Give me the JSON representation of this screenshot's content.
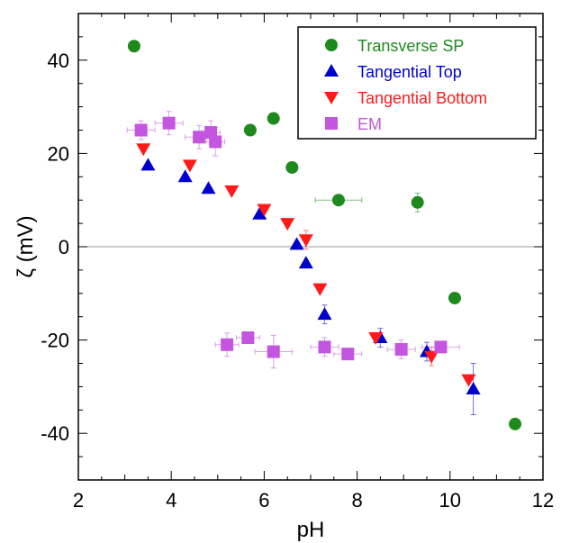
{
  "chart_data": {
    "type": "scatter",
    "title": "",
    "xlabel": "pH",
    "ylabel": "ζ (mV)",
    "xlim": [
      2,
      12
    ],
    "ylim": [
      -50,
      50
    ],
    "xticks": [
      2,
      4,
      6,
      8,
      10,
      12
    ],
    "yticks": [
      -40,
      -20,
      0,
      20,
      40
    ],
    "grid": false,
    "zero_line": true,
    "legend_position": "top-right",
    "series": [
      {
        "name": "Transverse SP",
        "marker": "circle",
        "color": "#1e8a1e",
        "points": [
          {
            "x": 3.2,
            "y": 43
          },
          {
            "x": 5.7,
            "y": 25
          },
          {
            "x": 6.2,
            "y": 27.5
          },
          {
            "x": 6.6,
            "y": 17
          },
          {
            "x": 7.6,
            "y": 10,
            "xerr": 0.5
          },
          {
            "x": 9.3,
            "y": 9.5,
            "yerr": 2
          },
          {
            "x": 10.1,
            "y": -11
          },
          {
            "x": 11.4,
            "y": -38
          }
        ]
      },
      {
        "name": "Tangential Top",
        "marker": "triangle-up",
        "color": "#0000cc",
        "points": [
          {
            "x": 3.5,
            "y": 17.5
          },
          {
            "x": 4.3,
            "y": 15
          },
          {
            "x": 4.8,
            "y": 12.5
          },
          {
            "x": 5.9,
            "y": 7
          },
          {
            "x": 6.7,
            "y": 0.5
          },
          {
            "x": 6.9,
            "y": -3.5
          },
          {
            "x": 7.3,
            "y": -14.5,
            "yerr": 2
          },
          {
            "x": 8.5,
            "y": -19.5,
            "yerr": 2
          },
          {
            "x": 9.5,
            "y": -22.5,
            "yerr": 2
          },
          {
            "x": 10.5,
            "y": -30.5,
            "yerr": 5.5
          }
        ]
      },
      {
        "name": "Tangential Bottom",
        "marker": "triangle-down",
        "color": "#ff1a1a",
        "points": [
          {
            "x": 3.4,
            "y": 21
          },
          {
            "x": 4.4,
            "y": 17.5
          },
          {
            "x": 5.3,
            "y": 12
          },
          {
            "x": 6.0,
            "y": 8
          },
          {
            "x": 6.5,
            "y": 5
          },
          {
            "x": 6.9,
            "y": 1.5,
            "yerr": 2
          },
          {
            "x": 7.2,
            "y": -9
          },
          {
            "x": 8.4,
            "y": -19.5
          },
          {
            "x": 9.6,
            "y": -23.5,
            "yerr": 2
          },
          {
            "x": 10.4,
            "y": -28.5
          }
        ]
      },
      {
        "name": "EM",
        "marker": "square",
        "color": "#c355e0",
        "points": [
          {
            "x": 3.35,
            "y": 25,
            "yerr": 2,
            "xerr": 0.3
          },
          {
            "x": 3.95,
            "y": 26.5,
            "yerr": 2.5,
            "xerr": 0.3
          },
          {
            "x": 4.6,
            "y": 23.5,
            "yerr": 2.5,
            "xerr": 0.3
          },
          {
            "x": 4.85,
            "y": 24.5,
            "yerr": 2.5,
            "xerr": 0.2
          },
          {
            "x": 4.95,
            "y": 22.5,
            "yerr": 3,
            "xerr": 0.2
          },
          {
            "x": 5.2,
            "y": -21,
            "yerr": 2.5,
            "xerr": 0.25
          },
          {
            "x": 5.65,
            "y": -19.5,
            "xerr": 0.25
          },
          {
            "x": 6.2,
            "y": -22.5,
            "yerr": 3.5,
            "xerr": 0.4
          },
          {
            "x": 7.3,
            "y": -21.5,
            "yerr": 2,
            "xerr": 0.3
          },
          {
            "x": 7.8,
            "y": -23,
            "xerr": 0.3
          },
          {
            "x": 8.95,
            "y": -22,
            "yerr": 2,
            "xerr": 0.3
          },
          {
            "x": 9.8,
            "y": -21.5,
            "xerr": 0.4
          }
        ]
      }
    ]
  }
}
